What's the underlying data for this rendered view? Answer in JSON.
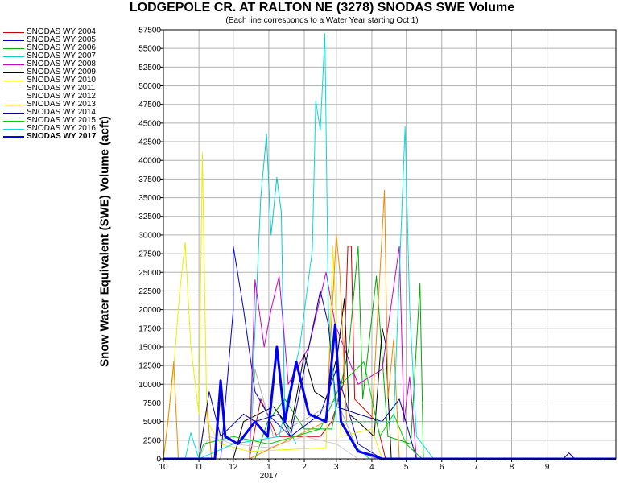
{
  "chart_data": {
    "type": "line",
    "title": "LODGEPOLE CR. AT RALTON NE (3278) SNODAS SWE Volume",
    "subtitle": "(Each line corresponds to a Water Year starting Oct 1)",
    "ylabel": "Snow Water Equivalent (SWE) Volume (acft)",
    "xlabel": "",
    "ylim": [
      0,
      57500
    ],
    "yticks": [
      0,
      2500,
      5000,
      7500,
      10000,
      12500,
      15000,
      17500,
      20000,
      22500,
      25000,
      27500,
      30000,
      32500,
      35000,
      37500,
      40000,
      42500,
      45000,
      47500,
      50000,
      52500,
      55000,
      57500
    ],
    "x_axis": {
      "range": [
        "2016-10-01",
        "2017-10-31"
      ],
      "tick_labels": [
        "10",
        "11",
        "12",
        "1",
        "2",
        "3",
        "4",
        "5",
        "6",
        "7",
        "8",
        "9"
      ],
      "tick_dates": [
        "2016-10-01",
        "2016-11-01",
        "2016-12-01",
        "2017-01-01",
        "2017-02-01",
        "2017-03-01",
        "2017-04-01",
        "2017-05-01",
        "2017-06-01",
        "2017-07-01",
        "2017-08-01",
        "2017-09-01"
      ],
      "year_label": "2017",
      "year_label_at": "2017-01-01"
    },
    "grid": true,
    "legend_position": "left",
    "series": [
      {
        "name": "SNODAS WY 2004",
        "color": "#cc0000",
        "width": 1,
        "points": [
          [
            "2016-10-01",
            0
          ],
          [
            "2016-12-15",
            0
          ],
          [
            "2016-12-25",
            8000
          ],
          [
            "2017-01-08",
            3000
          ],
          [
            "2017-02-15",
            3000
          ],
          [
            "2017-02-25",
            5000
          ],
          [
            "2017-03-07",
            10000
          ],
          [
            "2017-03-11",
            28500
          ],
          [
            "2017-03-14",
            28500
          ],
          [
            "2017-03-17",
            8000
          ],
          [
            "2017-04-05",
            5000
          ],
          [
            "2017-04-13",
            0
          ],
          [
            "2017-10-31",
            0
          ]
        ]
      },
      {
        "name": "SNODAS WY 2005",
        "color": "#0000cc",
        "width": 1,
        "points": [
          [
            "2016-10-01",
            0
          ],
          [
            "2016-11-20",
            0
          ],
          [
            "2016-12-01",
            20000
          ],
          [
            "2016-12-01",
            28500
          ],
          [
            "2016-12-10",
            20000
          ],
          [
            "2016-12-20",
            9000
          ],
          [
            "2016-12-31",
            6000
          ],
          [
            "2017-01-20",
            3000
          ],
          [
            "2017-02-15",
            6000
          ],
          [
            "2017-03-01",
            12000
          ],
          [
            "2017-03-20",
            2000
          ],
          [
            "2017-04-10",
            0
          ],
          [
            "2017-10-31",
            0
          ]
        ]
      },
      {
        "name": "SNODAS WY 2006",
        "color": "#00aa00",
        "width": 1,
        "points": [
          [
            "2016-10-01",
            0
          ],
          [
            "2016-12-20",
            0
          ],
          [
            "2016-12-31",
            5000
          ],
          [
            "2017-01-15",
            8000
          ],
          [
            "2017-02-01",
            4000
          ],
          [
            "2017-02-25",
            4000
          ],
          [
            "2017-03-12",
            15000
          ],
          [
            "2017-03-20",
            28500
          ],
          [
            "2017-03-24",
            8000
          ],
          [
            "2017-04-05",
            24500
          ],
          [
            "2017-04-15",
            3000
          ],
          [
            "2017-05-05",
            2000
          ],
          [
            "2017-05-13",
            23500
          ],
          [
            "2017-05-16",
            0
          ],
          [
            "2017-10-31",
            0
          ]
        ]
      },
      {
        "name": "SNODAS WY 2007",
        "color": "#00cccc",
        "width": 1,
        "points": [
          [
            "2016-10-01",
            0
          ],
          [
            "2016-12-15",
            0
          ],
          [
            "2016-12-25",
            35000
          ],
          [
            "2016-12-30",
            43500
          ],
          [
            "2017-01-03",
            30000
          ],
          [
            "2017-01-08",
            37700
          ],
          [
            "2017-01-12",
            33000
          ],
          [
            "2017-01-15",
            5000
          ],
          [
            "2017-01-25",
            2000
          ],
          [
            "2017-03-15",
            2000
          ],
          [
            "2017-03-30",
            0
          ],
          [
            "2017-10-31",
            0
          ]
        ]
      },
      {
        "name": "SNODAS WY 2008",
        "color": "#cc00cc",
        "width": 1,
        "points": [
          [
            "2016-10-01",
            0
          ],
          [
            "2016-12-15",
            0
          ],
          [
            "2016-12-20",
            24000
          ],
          [
            "2016-12-28",
            15000
          ],
          [
            "2017-01-03",
            20000
          ],
          [
            "2017-01-10",
            24500
          ],
          [
            "2017-01-18",
            10000
          ],
          [
            "2017-02-05",
            15000
          ],
          [
            "2017-02-20",
            25000
          ],
          [
            "2017-02-28",
            18000
          ],
          [
            "2017-03-20",
            10000
          ],
          [
            "2017-04-10",
            12000
          ],
          [
            "2017-04-25",
            28500
          ],
          [
            "2017-04-29",
            5000
          ],
          [
            "2017-05-04",
            11000
          ],
          [
            "2017-05-10",
            0
          ],
          [
            "2017-10-31",
            0
          ]
        ]
      },
      {
        "name": "SNODAS WY 2009",
        "color": "#000000",
        "width": 1,
        "points": [
          [
            "2016-10-01",
            0
          ],
          [
            "2016-12-01",
            0
          ],
          [
            "2016-12-10",
            5000
          ],
          [
            "2017-01-05",
            7000
          ],
          [
            "2017-01-20",
            4000
          ],
          [
            "2017-02-01",
            14000
          ],
          [
            "2017-02-10",
            9000
          ],
          [
            "2017-02-20",
            8000
          ],
          [
            "2017-03-02",
            14000
          ],
          [
            "2017-03-08",
            21500
          ],
          [
            "2017-03-12",
            6000
          ],
          [
            "2017-03-20",
            5000
          ],
          [
            "2017-04-03",
            3000
          ],
          [
            "2017-04-10",
            17500
          ],
          [
            "2017-04-13",
            15500
          ],
          [
            "2017-04-18",
            0
          ],
          [
            "2017-10-31",
            0
          ]
        ]
      },
      {
        "name": "SNODAS WY 2010",
        "color": "#eeee00",
        "width": 1,
        "points": [
          [
            "2016-10-01",
            0
          ],
          [
            "2016-10-10",
            12000
          ],
          [
            "2016-10-15",
            22000
          ],
          [
            "2016-10-20",
            29000
          ],
          [
            "2016-10-25",
            15000
          ],
          [
            "2016-11-01",
            6000
          ],
          [
            "2016-11-04",
            41000
          ],
          [
            "2016-11-08",
            5000
          ],
          [
            "2016-11-20",
            2000
          ],
          [
            "2016-12-15",
            1000
          ],
          [
            "2017-02-20",
            1500
          ],
          [
            "2017-02-26",
            28500
          ],
          [
            "2017-03-01",
            18000
          ],
          [
            "2017-03-05",
            3000
          ],
          [
            "2017-04-01",
            4000
          ],
          [
            "2017-04-10",
            0
          ],
          [
            "2017-10-31",
            0
          ]
        ]
      },
      {
        "name": "SNODAS WY 2011",
        "color": "#aaaaaa",
        "width": 1,
        "points": [
          [
            "2016-10-01",
            0
          ],
          [
            "2016-12-15",
            0
          ],
          [
            "2016-12-20",
            12000
          ],
          [
            "2017-01-05",
            3000
          ],
          [
            "2017-02-10",
            6000
          ],
          [
            "2017-03-01",
            8000
          ],
          [
            "2017-03-20",
            1000
          ],
          [
            "2017-04-05",
            0
          ],
          [
            "2017-10-31",
            0
          ]
        ]
      },
      {
        "name": "SNODAS WY 2012",
        "color": "#cccccc",
        "width": 1,
        "points": [
          [
            "2016-10-01",
            0
          ],
          [
            "2016-11-01",
            0
          ],
          [
            "2016-11-10",
            3000
          ],
          [
            "2016-12-01",
            2000
          ],
          [
            "2017-01-01",
            1500
          ],
          [
            "2017-02-01",
            3000
          ],
          [
            "2017-03-01",
            2000
          ],
          [
            "2017-03-20",
            0
          ],
          [
            "2017-10-31",
            0
          ]
        ]
      },
      {
        "name": "SNODAS WY 2013",
        "color": "#ee8800",
        "width": 1,
        "points": [
          [
            "2016-10-01",
            0
          ],
          [
            "2016-10-05",
            5000
          ],
          [
            "2016-10-10",
            13000
          ],
          [
            "2016-10-14",
            0
          ],
          [
            "2016-11-01",
            0
          ],
          [
            "2016-11-08",
            7000
          ],
          [
            "2016-11-12",
            0
          ],
          [
            "2016-12-15",
            0
          ],
          [
            "2017-02-20",
            5000
          ],
          [
            "2017-03-01",
            30000
          ],
          [
            "2017-03-04",
            25000
          ],
          [
            "2017-03-10",
            5000
          ],
          [
            "2017-04-01",
            5000
          ],
          [
            "2017-04-12",
            36000
          ],
          [
            "2017-04-15",
            8000
          ],
          [
            "2017-04-20",
            16000
          ],
          [
            "2017-04-25",
            0
          ],
          [
            "2017-10-31",
            0
          ]
        ]
      },
      {
        "name": "SNODAS WY 2014",
        "color": "#000099",
        "width": 1,
        "points": [
          [
            "2016-10-01",
            0
          ],
          [
            "2016-11-01",
            0
          ],
          [
            "2016-11-10",
            9000
          ],
          [
            "2016-11-20",
            3000
          ],
          [
            "2016-12-10",
            6000
          ],
          [
            "2016-12-20",
            5000
          ],
          [
            "2017-01-10",
            6000
          ],
          [
            "2017-01-20",
            3000
          ],
          [
            "2017-02-15",
            22500
          ],
          [
            "2017-02-22",
            18000
          ],
          [
            "2017-03-01",
            7000
          ],
          [
            "2017-03-20",
            6000
          ],
          [
            "2017-04-10",
            5000
          ],
          [
            "2017-04-25",
            8000
          ],
          [
            "2017-05-10",
            0
          ],
          [
            "2017-09-15",
            0
          ],
          [
            "2017-09-20",
            800
          ],
          [
            "2017-09-25",
            0
          ],
          [
            "2017-10-31",
            0
          ]
        ]
      },
      {
        "name": "SNODAS WY 2015",
        "color": "#00cc00",
        "width": 1,
        "points": [
          [
            "2016-10-01",
            0
          ],
          [
            "2016-11-01",
            0
          ],
          [
            "2016-11-05",
            2000
          ],
          [
            "2016-12-01",
            3000
          ],
          [
            "2017-01-01",
            2000
          ],
          [
            "2017-02-15",
            4000
          ],
          [
            "2017-03-05",
            10000
          ],
          [
            "2017-03-25",
            13000
          ],
          [
            "2017-04-08",
            3000
          ],
          [
            "2017-04-20",
            6000
          ],
          [
            "2017-05-01",
            2000
          ],
          [
            "2017-05-15",
            0
          ],
          [
            "2017-10-31",
            0
          ]
        ]
      },
      {
        "name": "SNODAS WY 2016",
        "color": "#00dddd",
        "width": 1,
        "points": [
          [
            "2016-10-01",
            0
          ],
          [
            "2016-10-20",
            0
          ],
          [
            "2016-10-25",
            3500
          ],
          [
            "2016-11-01",
            0
          ],
          [
            "2016-12-01",
            2000
          ],
          [
            "2017-01-10",
            3000
          ],
          [
            "2017-01-28",
            15000
          ],
          [
            "2017-02-08",
            28000
          ],
          [
            "2017-02-11",
            48000
          ],
          [
            "2017-02-15",
            44000
          ],
          [
            "2017-02-19",
            57000
          ],
          [
            "2017-02-22",
            20000
          ],
          [
            "2017-03-01",
            5000
          ],
          [
            "2017-03-20",
            5000
          ],
          [
            "2017-04-20",
            5000
          ],
          [
            "2017-04-30",
            44500
          ],
          [
            "2017-05-04",
            20000
          ],
          [
            "2017-05-10",
            3000
          ],
          [
            "2017-05-25",
            0
          ],
          [
            "2017-10-31",
            0
          ]
        ]
      },
      {
        "name": "SNODAS WY 2017",
        "color": "#0000ee",
        "width": 3,
        "points": [
          [
            "2016-10-01",
            0
          ],
          [
            "2016-11-15",
            0
          ],
          [
            "2016-11-20",
            10500
          ],
          [
            "2016-11-24",
            3000
          ],
          [
            "2016-12-05",
            2000
          ],
          [
            "2016-12-20",
            5000
          ],
          [
            "2016-12-31",
            3000
          ],
          [
            "2017-01-08",
            15000
          ],
          [
            "2017-01-15",
            5000
          ],
          [
            "2017-01-25",
            13000
          ],
          [
            "2017-02-05",
            6000
          ],
          [
            "2017-02-20",
            5000
          ],
          [
            "2017-02-28",
            18000
          ],
          [
            "2017-03-05",
            5000
          ],
          [
            "2017-03-20",
            1000
          ],
          [
            "2017-04-01",
            500
          ],
          [
            "2017-04-10",
            0
          ],
          [
            "2017-10-31",
            0
          ]
        ]
      }
    ]
  }
}
